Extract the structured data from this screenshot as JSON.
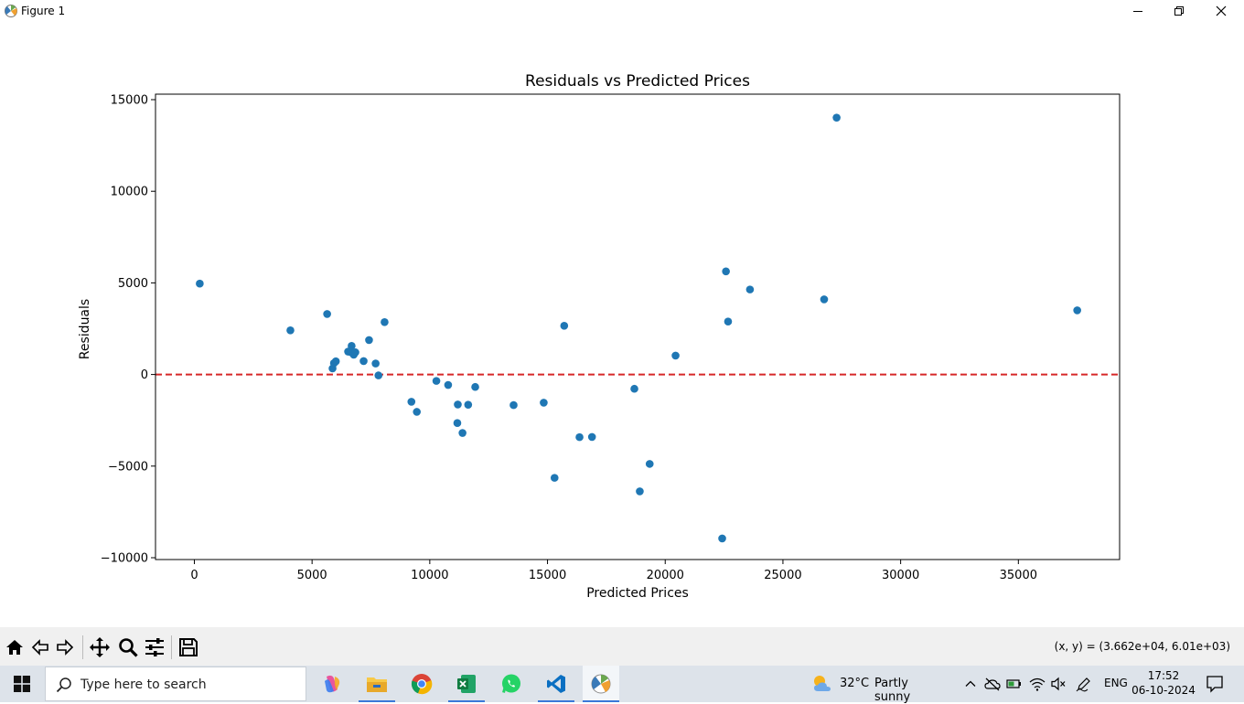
{
  "window": {
    "title": "Figure 1"
  },
  "toolbar": {
    "buttons": [
      "home-icon",
      "back-icon",
      "forward-icon",
      "pan-icon",
      "zoom-icon",
      "configure-icon",
      "save-icon"
    ],
    "coords": "(x, y) = (3.662e+04, 6.01e+03)"
  },
  "taskbar": {
    "search_placeholder": "Type here to search",
    "weather": {
      "temp": "32°C",
      "desc": "Partly sunny"
    },
    "language": "ENG",
    "time": "17:52",
    "date": "06-10-2024"
  },
  "chart_data": {
    "type": "scatter",
    "title": "Residuals vs Predicted Prices",
    "xlabel": "Predicted Prices",
    "ylabel": "Residuals",
    "xlim": [
      -1650,
      39300
    ],
    "ylim": [
      -10100,
      15300
    ],
    "xticks": [
      0,
      5000,
      10000,
      15000,
      20000,
      25000,
      30000,
      35000
    ],
    "xtick_labels": [
      "0",
      "5000",
      "10000",
      "15000",
      "20000",
      "25000",
      "30000",
      "35000"
    ],
    "yticks": [
      -10000,
      -5000,
      0,
      5000,
      10000,
      15000
    ],
    "ytick_labels": [
      "−10000",
      "−5000",
      "0",
      "5000",
      "10000",
      "15000"
    ],
    "grid": false,
    "marker_color": "#1f77b4",
    "reference_line": {
      "y": 0,
      "color": "#d62728",
      "style": "dashed"
    },
    "points": [
      [
        230,
        4960
      ],
      [
        4080,
        2410
      ],
      [
        5640,
        3300
      ],
      [
        5870,
        330
      ],
      [
        5930,
        620
      ],
      [
        6010,
        720
      ],
      [
        6530,
        1250
      ],
      [
        6640,
        1220
      ],
      [
        6680,
        1560
      ],
      [
        6770,
        1080
      ],
      [
        6840,
        1210
      ],
      [
        7190,
        730
      ],
      [
        7420,
        1880
      ],
      [
        7700,
        600
      ],
      [
        7820,
        -50
      ],
      [
        8080,
        2860
      ],
      [
        9220,
        -1490
      ],
      [
        9450,
        -2040
      ],
      [
        10280,
        -350
      ],
      [
        10780,
        -570
      ],
      [
        11170,
        -2650
      ],
      [
        11190,
        -1640
      ],
      [
        11390,
        -3190
      ],
      [
        11630,
        -1650
      ],
      [
        11930,
        -680
      ],
      [
        13560,
        -1670
      ],
      [
        14840,
        -1540
      ],
      [
        15300,
        -5640
      ],
      [
        15710,
        2660
      ],
      [
        16360,
        -3420
      ],
      [
        16890,
        -3410
      ],
      [
        18690,
        -780
      ],
      [
        18920,
        -6380
      ],
      [
        19340,
        -4880
      ],
      [
        20440,
        1030
      ],
      [
        22420,
        -8950
      ],
      [
        22580,
        5630
      ],
      [
        22670,
        2890
      ],
      [
        23600,
        4640
      ],
      [
        26750,
        4100
      ],
      [
        27280,
        14020
      ],
      [
        37500,
        3500
      ]
    ]
  }
}
